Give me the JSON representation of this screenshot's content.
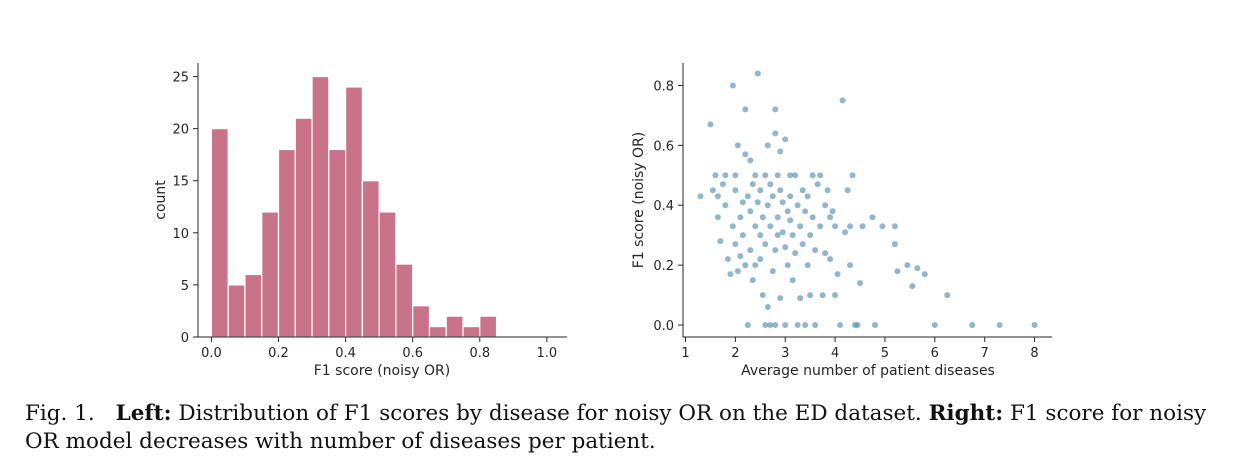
{
  "chart_data": [
    {
      "type": "bar",
      "subtype": "histogram",
      "xlabel": "F1 score (noisy OR)",
      "ylabel": "count",
      "xlim": [
        -0.04,
        1.06
      ],
      "ylim": [
        0,
        26.3
      ],
      "xticks": [
        0.0,
        0.2,
        0.4,
        0.6,
        0.8,
        1.0
      ],
      "xtick_labels": [
        "0.0",
        "0.2",
        "0.4",
        "0.6",
        "0.8",
        "1.0"
      ],
      "yticks": [
        0,
        5,
        10,
        15,
        20,
        25
      ],
      "ytick_labels": [
        "0",
        "5",
        "10",
        "15",
        "20",
        "25"
      ],
      "bin_edges": [
        0.0,
        0.05,
        0.1,
        0.15,
        0.2,
        0.25,
        0.3,
        0.35,
        0.4,
        0.45,
        0.5,
        0.55,
        0.6,
        0.65,
        0.7,
        0.75,
        0.8,
        0.85
      ],
      "values": [
        20,
        5,
        6,
        12,
        18,
        21,
        25,
        18,
        24,
        15,
        12,
        7,
        3,
        1,
        2,
        1,
        2
      ],
      "bar_color": "#c9738b",
      "edge_color": "#ffffff"
    },
    {
      "type": "scatter",
      "xlabel": "Average number of patient diseases",
      "ylabel": "F1 score (noisy OR)",
      "xlim": [
        0.95,
        8.35
      ],
      "ylim": [
        -0.04,
        0.875
      ],
      "xticks": [
        1,
        2,
        3,
        4,
        5,
        6,
        7,
        8
      ],
      "xtick_labels": [
        "1",
        "2",
        "3",
        "4",
        "5",
        "6",
        "7",
        "8"
      ],
      "yticks": [
        0.0,
        0.2,
        0.4,
        0.6,
        0.8
      ],
      "ytick_labels": [
        "0.0",
        "0.2",
        "0.4",
        "0.6",
        "0.8"
      ],
      "point_color": "#4a87a8",
      "points": [
        [
          1.3,
          0.43
        ],
        [
          1.5,
          0.67
        ],
        [
          1.55,
          0.45
        ],
        [
          1.6,
          0.5
        ],
        [
          1.65,
          0.36
        ],
        [
          1.65,
          0.43
        ],
        [
          1.7,
          0.28
        ],
        [
          1.75,
          0.47
        ],
        [
          1.8,
          0.5
        ],
        [
          1.8,
          0.4
        ],
        [
          1.85,
          0.22
        ],
        [
          1.9,
          0.17
        ],
        [
          1.95,
          0.33
        ],
        [
          1.95,
          0.8
        ],
        [
          2.0,
          0.45
        ],
        [
          2.0,
          0.5
        ],
        [
          2.0,
          0.27
        ],
        [
          2.05,
          0.18
        ],
        [
          2.05,
          0.6
        ],
        [
          2.1,
          0.36
        ],
        [
          2.1,
          0.23
        ],
        [
          2.15,
          0.41
        ],
        [
          2.15,
          0.3
        ],
        [
          2.2,
          0.72
        ],
        [
          2.2,
          0.57
        ],
        [
          2.2,
          0.2
        ],
        [
          2.25,
          0.43
        ],
        [
          2.25,
          0.0
        ],
        [
          2.3,
          0.55
        ],
        [
          2.3,
          0.38
        ],
        [
          2.3,
          0.25
        ],
        [
          2.35,
          0.47
        ],
        [
          2.35,
          0.15
        ],
        [
          2.4,
          0.33
        ],
        [
          2.4,
          0.5
        ],
        [
          2.4,
          0.2
        ],
        [
          2.45,
          0.84
        ],
        [
          2.45,
          0.41
        ],
        [
          2.5,
          0.45
        ],
        [
          2.5,
          0.3
        ],
        [
          2.5,
          0.22
        ],
        [
          2.55,
          0.36
        ],
        [
          2.55,
          0.1
        ],
        [
          2.6,
          0.5
        ],
        [
          2.6,
          0.27
        ],
        [
          2.6,
          0.0
        ],
        [
          2.65,
          0.6
        ],
        [
          2.65,
          0.06
        ],
        [
          2.65,
          0.4
        ],
        [
          2.7,
          0.47
        ],
        [
          2.7,
          0.33
        ],
        [
          2.7,
          0.0
        ],
        [
          2.75,
          0.18
        ],
        [
          2.75,
          0.43
        ],
        [
          2.8,
          0.64
        ],
        [
          2.8,
          0.72
        ],
        [
          2.8,
          0.25
        ],
        [
          2.8,
          0.0
        ],
        [
          2.85,
          0.5
        ],
        [
          2.85,
          0.36
        ],
        [
          2.85,
          0.3
        ],
        [
          2.9,
          0.45
        ],
        [
          2.9,
          0.58
        ],
        [
          2.9,
          0.09
        ],
        [
          2.95,
          0.31
        ],
        [
          2.95,
          0.41
        ],
        [
          3.0,
          0.62
        ],
        [
          3.0,
          0.26
        ],
        [
          3.0,
          0.0
        ],
        [
          3.05,
          0.38
        ],
        [
          3.05,
          0.2
        ],
        [
          3.1,
          0.5
        ],
        [
          3.1,
          0.35
        ],
        [
          3.1,
          0.43
        ],
        [
          3.15,
          0.3
        ],
        [
          3.15,
          0.15
        ],
        [
          3.2,
          0.24
        ],
        [
          3.2,
          0.5
        ],
        [
          3.25,
          0.4
        ],
        [
          3.25,
          0.0
        ],
        [
          3.3,
          0.33
        ],
        [
          3.3,
          0.09
        ],
        [
          3.35,
          0.45
        ],
        [
          3.35,
          0.27
        ],
        [
          3.4,
          0.0
        ],
        [
          3.4,
          0.38
        ],
        [
          3.45,
          0.43
        ],
        [
          3.45,
          0.2
        ],
        [
          3.5,
          0.3
        ],
        [
          3.5,
          0.1
        ],
        [
          3.55,
          0.5
        ],
        [
          3.55,
          0.36
        ],
        [
          3.6,
          0.0
        ],
        [
          3.6,
          0.25
        ],
        [
          3.65,
          0.47
        ],
        [
          3.7,
          0.5
        ],
        [
          3.7,
          0.33
        ],
        [
          3.75,
          0.1
        ],
        [
          3.8,
          0.24
        ],
        [
          3.8,
          0.4
        ],
        [
          3.85,
          0.45
        ],
        [
          3.9,
          0.36
        ],
        [
          3.9,
          0.22
        ],
        [
          3.95,
          0.38
        ],
        [
          4.0,
          0.1
        ],
        [
          4.0,
          0.33
        ],
        [
          4.05,
          0.17
        ],
        [
          4.1,
          0.0
        ],
        [
          4.15,
          0.75
        ],
        [
          4.2,
          0.31
        ],
        [
          4.25,
          0.45
        ],
        [
          4.3,
          0.33
        ],
        [
          4.3,
          0.2
        ],
        [
          4.35,
          0.5
        ],
        [
          4.4,
          0.0
        ],
        [
          4.45,
          0.0
        ],
        [
          4.5,
          0.14
        ],
        [
          4.55,
          0.33
        ],
        [
          4.75,
          0.36
        ],
        [
          4.8,
          0.0
        ],
        [
          4.95,
          0.33
        ],
        [
          5.2,
          0.33
        ],
        [
          5.2,
          0.27
        ],
        [
          5.25,
          0.18
        ],
        [
          5.45,
          0.2
        ],
        [
          5.55,
          0.13
        ],
        [
          5.65,
          0.19
        ],
        [
          5.8,
          0.17
        ],
        [
          6.0,
          0.0
        ],
        [
          6.25,
          0.1
        ],
        [
          6.75,
          0.0
        ],
        [
          7.3,
          0.0
        ],
        [
          8.0,
          0.0
        ]
      ]
    }
  ],
  "caption": {
    "fig_label": "Fig. 1.",
    "left_label": "Left:",
    "left_text": "Distribution of F1 scores by disease for noisy OR on the ED dataset.",
    "right_label": "Right:",
    "right_text": "F1 score for noisy OR model decreases with number of diseases per patient."
  }
}
